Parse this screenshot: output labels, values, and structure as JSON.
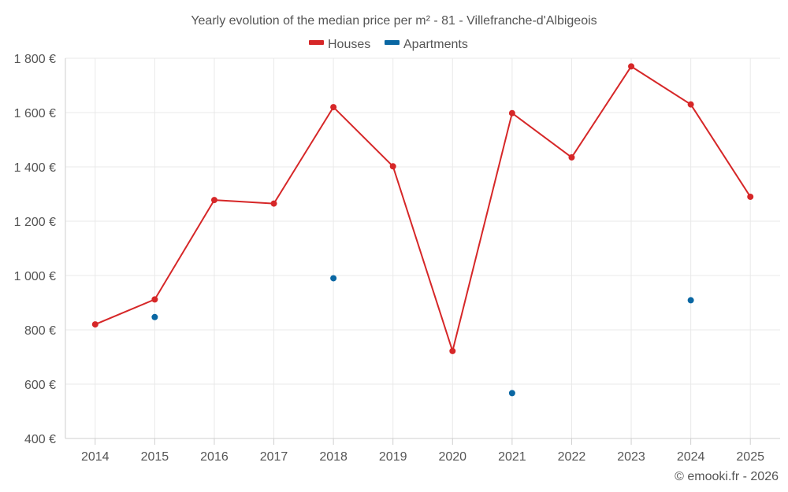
{
  "chart_data": {
    "type": "line",
    "title": "Yearly evolution of the median price per m² - 81 - Villefranche-d'Albigeois",
    "categories": [
      "2014",
      "2015",
      "2016",
      "2017",
      "2018",
      "2019",
      "2020",
      "2021",
      "2022",
      "2023",
      "2024",
      "2025"
    ],
    "series": [
      {
        "name": "Houses",
        "color": "#d62728",
        "values": [
          820,
          912,
          1278,
          1265,
          1620,
          1402,
          722,
          1598,
          1435,
          1770,
          1630,
          1290
        ]
      },
      {
        "name": "Apartments",
        "color": "#0a67a3",
        "values": [
          null,
          847,
          null,
          null,
          990,
          null,
          null,
          567,
          null,
          null,
          909,
          null
        ]
      }
    ],
    "ylim": [
      400,
      1800
    ],
    "yticks": [
      400,
      600,
      800,
      1000,
      1200,
      1400,
      1600,
      1800
    ],
    "ytick_labels": [
      "400 €",
      "600 €",
      "800 €",
      "1 000 €",
      "1 200 €",
      "1 400 €",
      "1 600 €",
      "1 800 €"
    ],
    "grid": true,
    "legend": "top-center",
    "xlabel": "",
    "ylabel": ""
  },
  "credit": "© emooki.fr - 2026"
}
